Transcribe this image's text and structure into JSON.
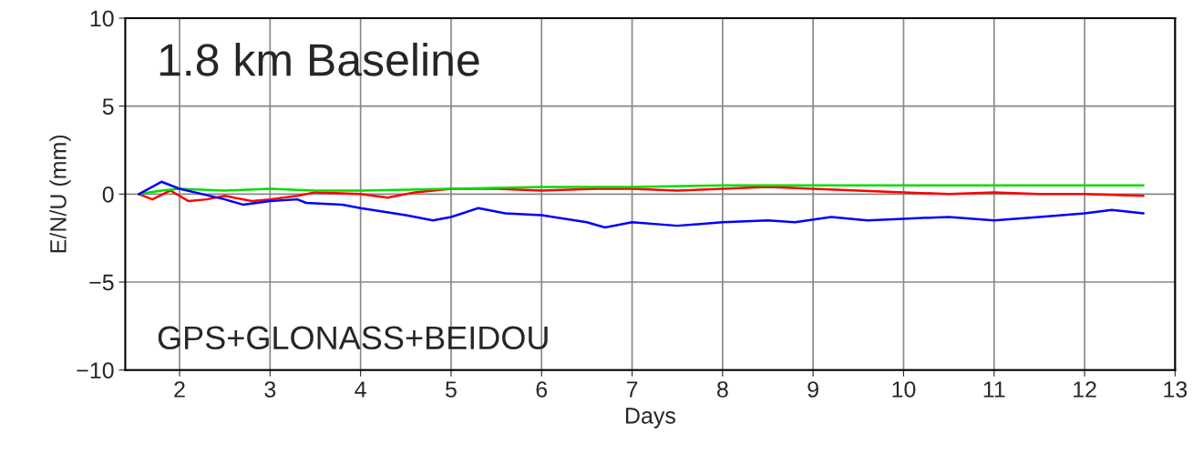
{
  "chart_data": {
    "type": "line",
    "xlabel": "Days",
    "ylabel": "E/N/U (mm)",
    "annotations": [
      "1.8 km Baseline",
      "GPS+GLONASS+BEIDOU"
    ],
    "xlim": [
      1.4,
      13
    ],
    "xticks": [
      2,
      3,
      4,
      5,
      6,
      7,
      8,
      9,
      10,
      11,
      12,
      13
    ],
    "ylim": [
      -10,
      10
    ],
    "yticks": [
      -10,
      -5,
      0,
      5,
      10
    ],
    "grid": true,
    "legend": false,
    "marker": "none",
    "line_style": "solid",
    "series": [
      {
        "color": "#ff0000",
        "x": [
          1.55,
          1.7,
          1.9,
          2.1,
          2.3,
          2.5,
          2.8,
          3.0,
          3.3,
          3.5,
          4.0,
          4.3,
          4.6,
          5.0,
          5.5,
          6.0,
          6.6,
          7.0,
          7.5,
          8.0,
          8.5,
          9.0,
          9.5,
          10.0,
          10.5,
          11.0,
          11.5,
          12.0,
          12.65
        ],
        "values": [
          0,
          -0.3,
          0.2,
          -0.4,
          -0.3,
          -0.1,
          -0.4,
          -0.3,
          -0.1,
          0.1,
          0.0,
          -0.2,
          0.1,
          0.3,
          0.3,
          0.2,
          0.3,
          0.3,
          0.2,
          0.3,
          0.4,
          0.3,
          0.2,
          0.1,
          0.0,
          0.1,
          0.0,
          0.0,
          -0.1
        ]
      },
      {
        "color": "#00dd00",
        "x": [
          1.55,
          1.8,
          2.0,
          2.5,
          3.0,
          3.5,
          4.0,
          5.0,
          6.0,
          7.0,
          8.0,
          9.0,
          10.0,
          11.0,
          12.0,
          12.65
        ],
        "values": [
          0,
          0.2,
          0.3,
          0.2,
          0.3,
          0.2,
          0.2,
          0.3,
          0.4,
          0.4,
          0.5,
          0.5,
          0.5,
          0.5,
          0.5,
          0.5
        ]
      },
      {
        "color": "#0000ff",
        "x": [
          1.55,
          1.8,
          2.0,
          2.5,
          2.7,
          3.0,
          3.3,
          3.4,
          3.8,
          4.0,
          4.5,
          4.8,
          5.0,
          5.3,
          5.6,
          6.0,
          6.5,
          6.7,
          7.0,
          7.5,
          8.0,
          8.5,
          8.8,
          9.2,
          9.6,
          10.0,
          10.5,
          11.0,
          11.5,
          12.0,
          12.3,
          12.65
        ],
        "values": [
          0,
          0.7,
          0.3,
          -0.3,
          -0.6,
          -0.4,
          -0.3,
          -0.5,
          -0.6,
          -0.8,
          -1.2,
          -1.5,
          -1.3,
          -0.8,
          -1.1,
          -1.2,
          -1.6,
          -1.9,
          -1.6,
          -1.8,
          -1.6,
          -1.5,
          -1.6,
          -1.3,
          -1.5,
          -1.4,
          -1.3,
          -1.5,
          -1.3,
          -1.1,
          -0.9,
          -1.1
        ]
      }
    ]
  }
}
